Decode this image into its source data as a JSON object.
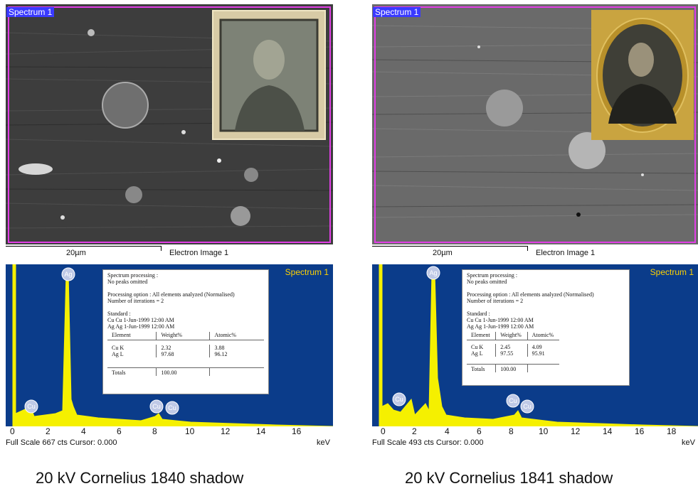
{
  "panels": [
    {
      "sem_label": "Spectrum 1",
      "scale_text": "20µm",
      "image_label": "Electron Image 1",
      "spectrum_label": "Spectrum 1",
      "info": {
        "line1": "Spectrum processing :",
        "line2": "No peaks omitted",
        "line3": "Processing option : All elements analyzed (Normalised)",
        "line4": "Number of iterations = 2",
        "line5": "Standard :",
        "line6": "Cu   Cu  1-Jun-1999 12:00 AM",
        "line7": "Ag   Ag  1-Jun-1999 12:00 AM",
        "headers": [
          "Element",
          "Weight%",
          "Atomic%"
        ],
        "rows": [
          [
            "Cu K",
            "2.32",
            "3.88"
          ],
          [
            "Ag L",
            "97.68",
            "96.12"
          ]
        ],
        "totals": [
          "Totals",
          "100.00",
          ""
        ]
      },
      "ticks": [
        "0",
        "2",
        "4",
        "6",
        "8",
        "10",
        "12",
        "14",
        "16"
      ],
      "status": "Full Scale 667 cts Cursor: 0.000",
      "unit": "keV",
      "caption": "20 kV Cornelius 1840 shadow",
      "peak_labels": [
        "Ag",
        "Cu",
        "Cu",
        "Cu"
      ]
    },
    {
      "sem_label": "Spectrum 1",
      "scale_text": "20µm",
      "image_label": "Electron Image 1",
      "spectrum_label": "Spectrum 1",
      "info": {
        "line1": "Spectrum processing :",
        "line2": "No peaks omitted",
        "line3": "Processing option : All elements analyzed (Normalised)",
        "line4": "Number of iterations = 2",
        "line5": "Standard :",
        "line6": "Cu   Cu  1-Jun-1999 12:00 AM",
        "line7": "Ag   Ag  1-Jun-1999 12:00 AM",
        "headers": [
          "Element",
          "Weight%",
          "Atomic%"
        ],
        "rows": [
          [
            "Cu K",
            "2.45",
            "4.09"
          ],
          [
            "Ag L",
            "97.55",
            "95.91"
          ]
        ],
        "totals": [
          "Totals",
          "100.00",
          ""
        ]
      },
      "ticks": [
        "0",
        "2",
        "4",
        "6",
        "8",
        "10",
        "12",
        "14",
        "16",
        "18"
      ],
      "status": "Full Scale 493 cts Cursor: 0.000",
      "unit": "keV",
      "caption": "20 kV Cornelius 1841 shadow",
      "peak_labels": [
        "Ag",
        "Cu",
        "Cu",
        "Cu"
      ]
    }
  ],
  "colors": {
    "spectrum_bg": "#0b3c8a",
    "spectrum_fill": "#f5f000",
    "frame": "#e23ee6",
    "label_bg": "#3a3aff",
    "spectrum_title": "#ffd200"
  }
}
